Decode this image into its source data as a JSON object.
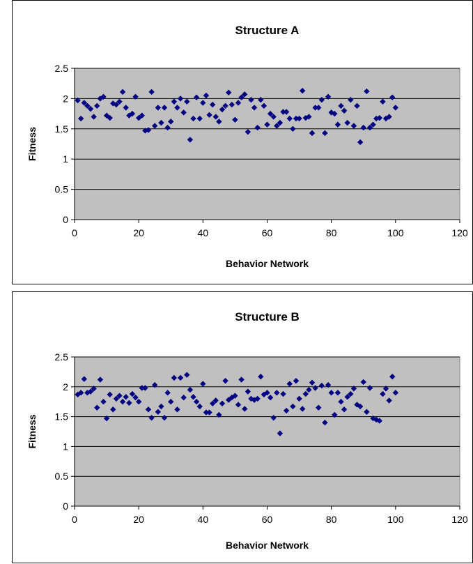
{
  "chart_data": [
    {
      "type": "scatter",
      "title": "Structure A",
      "xlabel": "Behavior Network",
      "ylabel": "Fitness",
      "xlim": [
        0,
        120
      ],
      "ylim": [
        0,
        2.5
      ],
      "xticks": [
        "0",
        "20",
        "40",
        "60",
        "80",
        "100",
        "120"
      ],
      "yticks": [
        "0",
        "0.5",
        "1",
        "1.5",
        "2",
        "2.5"
      ],
      "grid": true,
      "legend": "none",
      "colors": {
        "plot_bg": "#c0c0c0",
        "marker": "#000080",
        "grid": "#000000"
      },
      "x": [
        1,
        2,
        3,
        4,
        5,
        6,
        7,
        8,
        9,
        10,
        11,
        12,
        13,
        14,
        15,
        16,
        17,
        18,
        19,
        20,
        21,
        22,
        23,
        24,
        25,
        26,
        27,
        28,
        29,
        30,
        31,
        32,
        33,
        34,
        35,
        36,
        37,
        38,
        39,
        40,
        41,
        42,
        43,
        44,
        45,
        46,
        47,
        48,
        49,
        50,
        51,
        52,
        53,
        54,
        55,
        56,
        57,
        58,
        59,
        60,
        61,
        62,
        63,
        64,
        65,
        66,
        67,
        68,
        69,
        70,
        71,
        72,
        73,
        74,
        75,
        76,
        77,
        78,
        79,
        80,
        81,
        82,
        83,
        84,
        85,
        86,
        87,
        88,
        89,
        90,
        91,
        92,
        93,
        94,
        95,
        96,
        97,
        98,
        99,
        100
      ],
      "y": [
        1.97,
        1.67,
        1.93,
        1.88,
        1.83,
        1.7,
        1.88,
        2.0,
        2.03,
        1.72,
        1.68,
        1.92,
        1.9,
        1.95,
        2.11,
        1.85,
        1.72,
        1.75,
        2.03,
        1.68,
        1.72,
        1.47,
        1.48,
        2.11,
        1.55,
        1.85,
        1.6,
        1.85,
        1.52,
        1.62,
        1.95,
        1.85,
        2.0,
        1.77,
        1.95,
        1.32,
        1.67,
        2.02,
        1.67,
        1.93,
        2.05,
        1.73,
        1.9,
        1.7,
        1.62,
        1.82,
        1.88,
        2.1,
        1.9,
        1.65,
        1.93,
        2.02,
        2.07,
        1.45,
        1.98,
        1.85,
        1.52,
        1.98,
        1.88,
        1.57,
        1.75,
        1.7,
        1.55,
        1.6,
        1.78,
        1.78,
        1.67,
        1.5,
        1.67,
        1.67,
        2.13,
        1.68,
        1.7,
        1.43,
        1.85,
        1.85,
        1.98,
        1.43,
        2.03,
        1.77,
        1.75,
        1.57,
        1.88,
        1.8,
        1.6,
        1.98,
        1.55,
        1.88,
        1.28,
        1.52,
        2.12,
        1.52,
        1.57,
        1.67,
        1.68,
        1.95,
        1.67,
        1.7,
        2.02,
        1.85
      ]
    },
    {
      "type": "scatter",
      "title": "Structure B",
      "xlabel": "Behavior Network",
      "ylabel": "Fitness",
      "xlim": [
        0,
        120
      ],
      "ylim": [
        0,
        2.5
      ],
      "xticks": [
        "0",
        "20",
        "40",
        "60",
        "80",
        "100",
        "120"
      ],
      "yticks": [
        "0",
        "0.5",
        "1",
        "1.5",
        "2",
        "2.5"
      ],
      "grid": true,
      "legend": "none",
      "colors": {
        "plot_bg": "#c0c0c0",
        "marker": "#000080",
        "grid": "#000000"
      },
      "x": [
        1,
        2,
        3,
        4,
        5,
        6,
        7,
        8,
        9,
        10,
        11,
        12,
        13,
        14,
        15,
        16,
        17,
        18,
        19,
        20,
        21,
        22,
        23,
        24,
        25,
        26,
        27,
        28,
        29,
        30,
        31,
        32,
        33,
        34,
        35,
        36,
        37,
        38,
        39,
        40,
        41,
        42,
        43,
        44,
        45,
        46,
        47,
        48,
        49,
        50,
        51,
        52,
        53,
        54,
        55,
        56,
        57,
        58,
        59,
        60,
        61,
        62,
        63,
        64,
        65,
        66,
        67,
        68,
        69,
        70,
        71,
        72,
        73,
        74,
        75,
        76,
        77,
        78,
        79,
        80,
        81,
        82,
        83,
        84,
        85,
        86,
        87,
        88,
        89,
        90,
        91,
        92,
        93,
        94,
        95,
        96,
        97,
        98,
        99,
        100
      ],
      "y": [
        1.87,
        1.9,
        2.13,
        1.9,
        1.92,
        1.97,
        1.65,
        2.12,
        1.75,
        1.47,
        1.87,
        1.62,
        1.8,
        1.85,
        1.75,
        1.83,
        1.73,
        1.88,
        1.82,
        1.75,
        1.98,
        1.98,
        1.62,
        1.48,
        2.03,
        1.58,
        1.67,
        1.48,
        1.9,
        1.75,
        2.15,
        1.62,
        2.15,
        1.82,
        2.2,
        1.95,
        1.83,
        1.75,
        1.67,
        2.05,
        1.57,
        1.57,
        1.72,
        1.77,
        1.53,
        1.72,
        2.1,
        1.78,
        1.82,
        1.85,
        1.7,
        2.12,
        1.63,
        1.92,
        1.8,
        1.78,
        1.8,
        2.17,
        1.87,
        1.9,
        1.82,
        1.48,
        1.9,
        1.22,
        1.88,
        1.6,
        2.05,
        1.67,
        2.1,
        1.8,
        1.63,
        1.88,
        1.95,
        2.07,
        1.98,
        1.65,
        2.02,
        1.4,
        2.03,
        1.9,
        1.53,
        1.9,
        1.75,
        1.62,
        1.83,
        1.88,
        1.97,
        1.7,
        1.67,
        2.08,
        1.58,
        1.98,
        1.47,
        1.45,
        1.43,
        1.88,
        1.97,
        1.77,
        2.17,
        1.9
      ]
    }
  ]
}
